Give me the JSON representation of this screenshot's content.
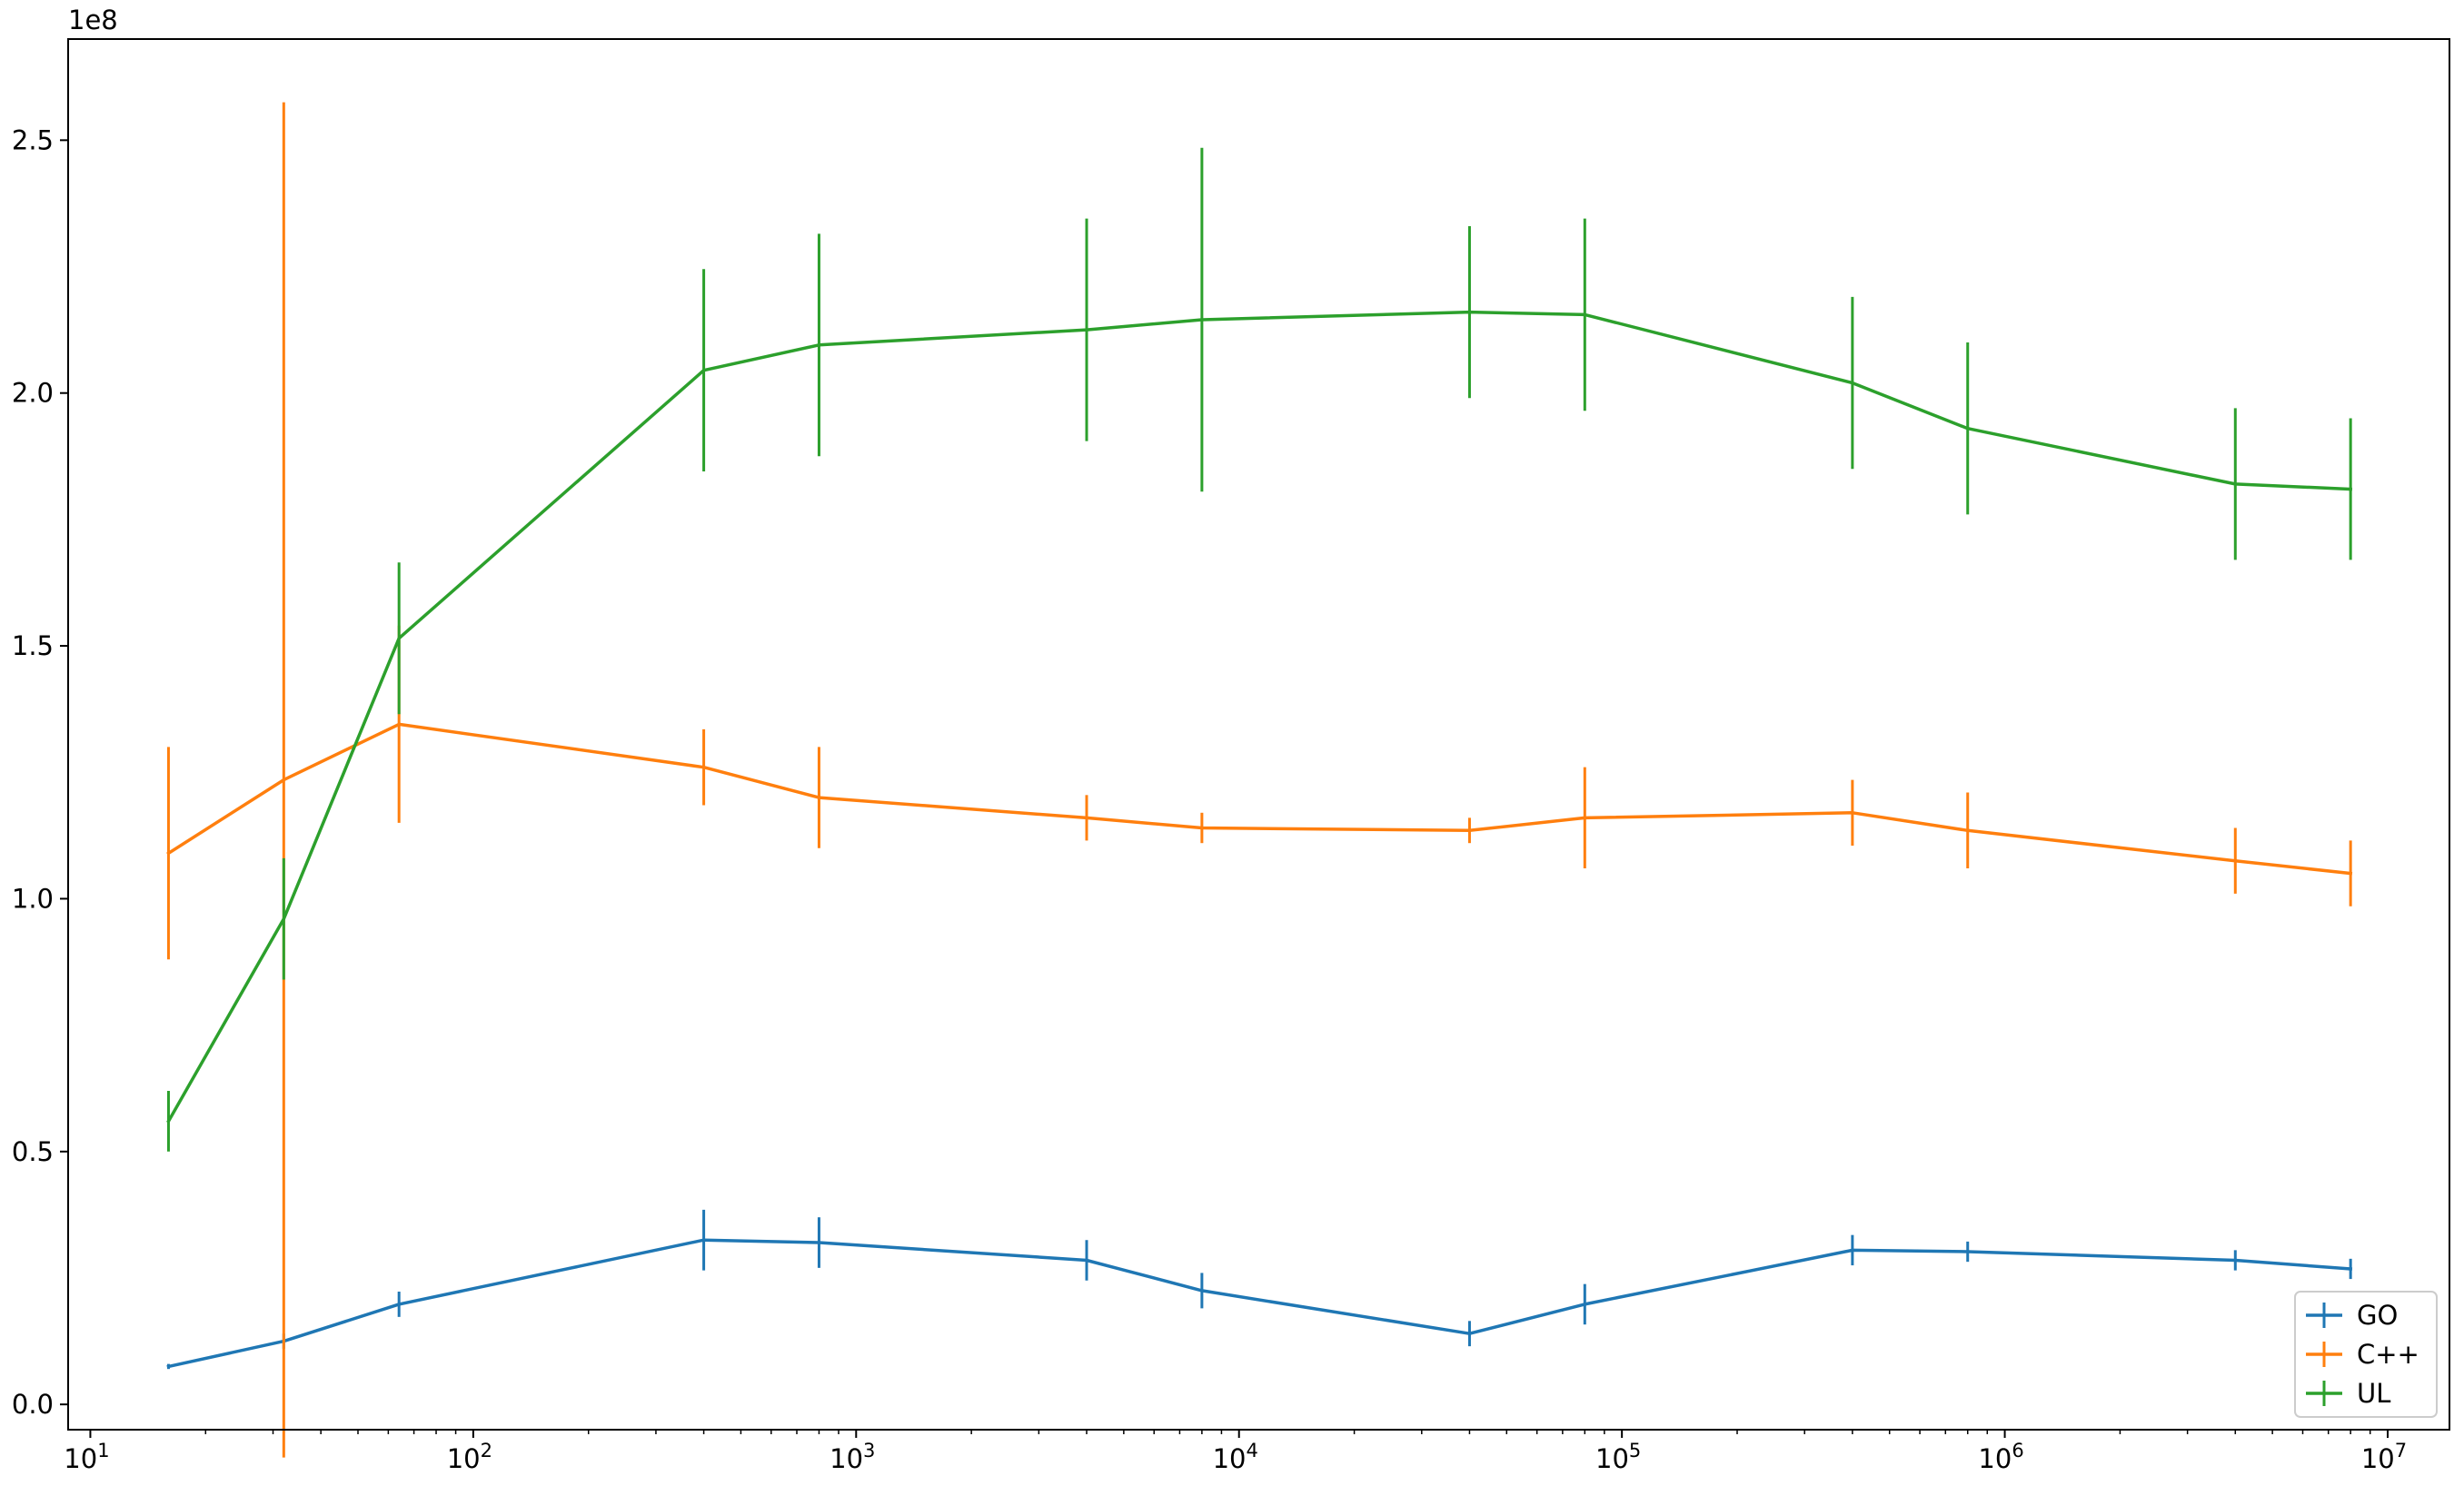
{
  "chart_data": {
    "type": "line",
    "x_scale": "log",
    "xlim": [
      8.75,
      14500000
    ],
    "ylim": [
      -5000000,
      270000000
    ],
    "y_offset_label": "1e8",
    "x_ticks": [
      {
        "value": 10,
        "base": "10",
        "exp": "1"
      },
      {
        "value": 100,
        "base": "10",
        "exp": "2"
      },
      {
        "value": 1000,
        "base": "10",
        "exp": "3"
      },
      {
        "value": 10000,
        "base": "10",
        "exp": "4"
      },
      {
        "value": 100000,
        "base": "10",
        "exp": "5"
      },
      {
        "value": 1000000,
        "base": "10",
        "exp": "6"
      },
      {
        "value": 10000000,
        "base": "10",
        "exp": "7"
      }
    ],
    "y_ticks": [
      {
        "value": 0,
        "label": "0.0"
      },
      {
        "value": 50000000,
        "label": "0.5"
      },
      {
        "value": 100000000,
        "label": "1.0"
      },
      {
        "value": 150000000,
        "label": "1.5"
      },
      {
        "value": 200000000,
        "label": "2.0"
      },
      {
        "value": 250000000,
        "label": "2.5"
      }
    ],
    "x": [
      16,
      32,
      64,
      400,
      800,
      4000,
      8000,
      40000,
      80000,
      400000,
      800000,
      4000000,
      8000000
    ],
    "series": [
      {
        "name": "GO",
        "color": "#1f77b4",
        "values": [
          7500000,
          12500000,
          19800000,
          32500000,
          32000000,
          28500000,
          22500000,
          14000000,
          19800000,
          30500000,
          30200000,
          28500000,
          26800000
        ],
        "errors": [
          500000,
          1500000,
          2500000,
          6000000,
          5000000,
          4000000,
          3500000,
          2500000,
          4000000,
          3000000,
          2000000,
          2000000,
          2000000
        ]
      },
      {
        "name": "C++",
        "color": "#ff7f0e",
        "values": [
          109000000,
          123500000,
          134500000,
          126000000,
          120000000,
          116000000,
          114000000,
          113500000,
          116000000,
          117000000,
          113500000,
          107500000,
          105000000
        ],
        "errors": [
          21000000,
          134000000,
          19500000,
          7500000,
          10000000,
          4500000,
          3000000,
          2500000,
          10000000,
          6500000,
          7500000,
          6500000,
          6500000
        ]
      },
      {
        "name": "UL",
        "color": "#2ca02c",
        "values": [
          56000000,
          96000000,
          151500000,
          204500000,
          209500000,
          212500000,
          214500000,
          216000000,
          215500000,
          202000000,
          193000000,
          182000000,
          181000000
        ],
        "errors": [
          6000000,
          12000000,
          15000000,
          20000000,
          22000000,
          22000000,
          34000000,
          17000000,
          19000000,
          17000000,
          17000000,
          15000000,
          14000000
        ]
      }
    ],
    "legend_position": "lower right",
    "grid": false
  }
}
